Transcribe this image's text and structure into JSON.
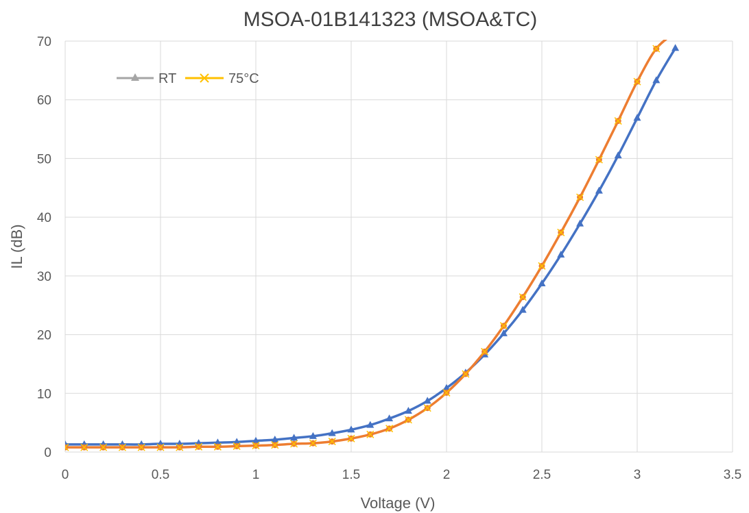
{
  "chart_data": {
    "type": "line",
    "title": "MSOA-01B141323 (MSOA&TC)",
    "xlabel": "Voltage (V)",
    "ylabel": "IL (dB)",
    "xlim": [
      0,
      3.5
    ],
    "ylim": [
      0,
      70
    ],
    "x_ticks": [
      "0",
      "0.5",
      "1",
      "1.5",
      "2",
      "2.5",
      "3",
      "3.5"
    ],
    "y_ticks": [
      "0",
      "10",
      "20",
      "30",
      "40",
      "50",
      "60",
      "70"
    ],
    "grid": true,
    "legend_position": "top-left",
    "x": [
      0,
      0.1,
      0.2,
      0.3,
      0.4,
      0.5,
      0.6,
      0.7,
      0.8,
      0.9,
      1.0,
      1.1,
      1.2,
      1.3,
      1.4,
      1.5,
      1.6,
      1.7,
      1.8,
      1.9,
      2.0,
      2.1,
      2.2,
      2.3,
      2.4,
      2.5,
      2.6,
      2.7,
      2.8,
      2.9,
      3.0,
      3.1,
      3.2
    ],
    "series": [
      {
        "name": "RT",
        "line_color": "#4472C4",
        "marker": "triangle",
        "legend_color": "#A5A5A5",
        "values": [
          1.3,
          1.3,
          1.3,
          1.3,
          1.3,
          1.4,
          1.4,
          1.5,
          1.6,
          1.7,
          1.9,
          2.1,
          2.4,
          2.7,
          3.2,
          3.8,
          4.6,
          5.7,
          7.0,
          8.7,
          10.9,
          13.5,
          16.6,
          20.2,
          24.2,
          28.7,
          33.6,
          38.9,
          44.5,
          50.5,
          56.9,
          63.3,
          68.8
        ]
      },
      {
        "name": "75°C",
        "line_color": "#ED7D31",
        "marker": "x",
        "legend_color": "#FFC000",
        "values": [
          0.8,
          0.8,
          0.8,
          0.8,
          0.8,
          0.8,
          0.8,
          0.9,
          0.9,
          1.0,
          1.1,
          1.2,
          1.4,
          1.5,
          1.8,
          2.3,
          3.0,
          4.0,
          5.5,
          7.5,
          10.1,
          13.3,
          17.1,
          21.5,
          26.4,
          31.7,
          37.4,
          43.4,
          49.8,
          56.4,
          63.1,
          68.7,
          71.5
        ]
      }
    ]
  }
}
